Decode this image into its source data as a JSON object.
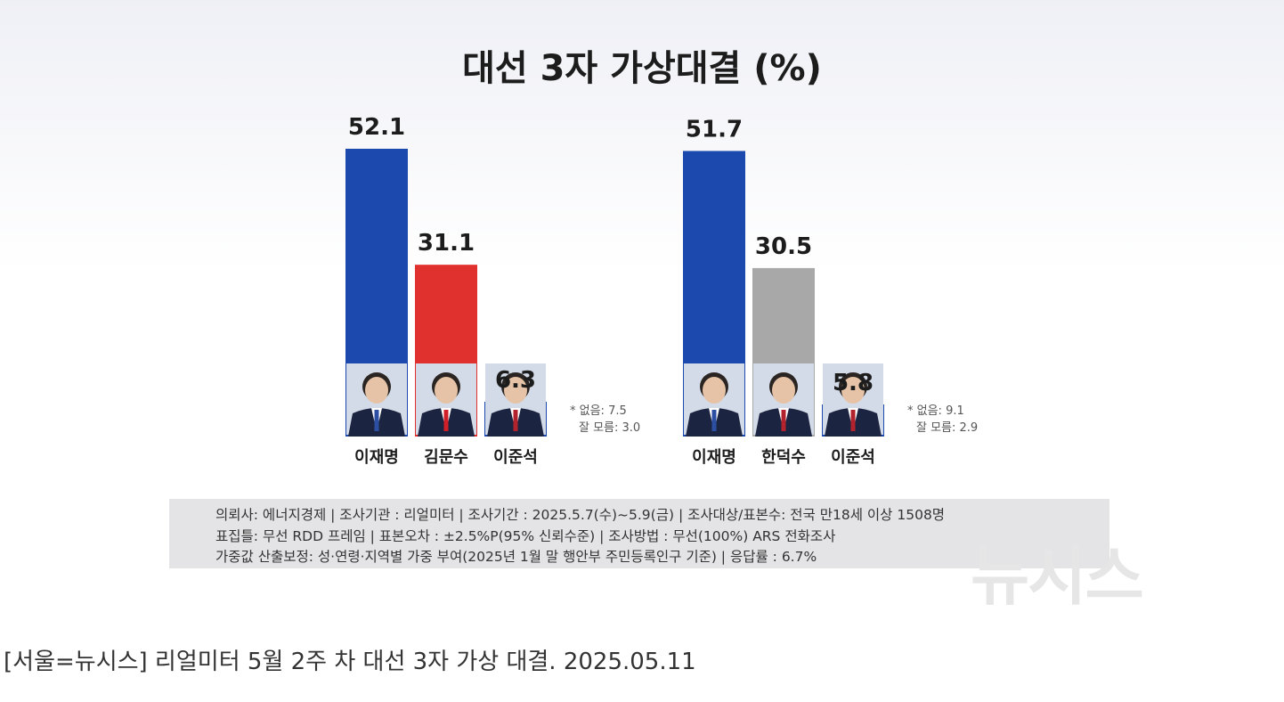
{
  "chart_data": [
    {
      "type": "bar",
      "title": "대선 3자 가상대결 (%)",
      "categories": [
        "이재명",
        "김문수",
        "이준석"
      ],
      "values": [
        52.1,
        31.1,
        6.3
      ],
      "colors": [
        "#1c49ad",
        "#e0312f",
        "#1c49ad"
      ],
      "notes": [
        "* 없음: 7.5",
        "잘 모름: 3.0"
      ]
    },
    {
      "type": "bar",
      "categories": [
        "이재명",
        "한덕수",
        "이준석"
      ],
      "values": [
        51.7,
        30.5,
        5.8
      ],
      "colors": [
        "#1c49ad",
        "#a8a8a8",
        "#1c49ad"
      ],
      "notes": [
        "* 없음: 9.1",
        "잘 모름: 2.9"
      ]
    }
  ],
  "survey_info": [
    "의뢰사: 에너지경제 | 조사기관 : 리얼미터  |  조사기간 : 2025.5.7(수)~5.9(금) | 조사대상/표본수: 전국 만18세 이상 1508명",
    "표집틀: 무선 RDD 프레임 | 표본오차 : ±2.5%P(95% 신뢰수준) | 조사방법 : 무선(100%) ARS 전화조사",
    "가중값 산출보정: 성·연령·지역별 가중 부여(2025년 1월 말 행안부 주민등록인구 기준) | 응답률 : 6.7%"
  ],
  "watermark": "뉴시스",
  "caption": "[서울=뉴시스] 리얼미터 5월 2주 차 대선 3자 가상 대결. 2025.05.11"
}
